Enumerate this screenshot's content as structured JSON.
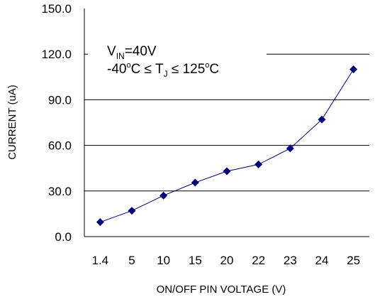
{
  "chart_data": {
    "type": "line",
    "categories": [
      "1.4",
      "5",
      "10",
      "15",
      "20",
      "22",
      "23",
      "24",
      "25"
    ],
    "series": [
      {
        "values": [
          9.5,
          17,
          27,
          35.5,
          43,
          47.5,
          58,
          77,
          110
        ]
      }
    ],
    "y_tick_labels": [
      "0.0",
      "30.0",
      "60.0",
      "90.0",
      "120.0",
      "150.0"
    ],
    "ylim": [
      0,
      150
    ],
    "xlabel": "ON/OFF PIN VOLTAGE (V)",
    "ylabel": "CURRENT (uA)",
    "grid": "horizontal",
    "marker": "diamond",
    "series_color": "#00007a",
    "annotation": {
      "line1_main": "V",
      "line1_sub": "IN",
      "line1_rest": "=40V",
      "line2_a": "-40",
      "line2_sup_a": "o",
      "line2_b": "C ≤ T",
      "line2_sub": "J",
      "line2_c": " ≤ 125",
      "line2_sup_b": "o",
      "line2_d": "C"
    }
  }
}
